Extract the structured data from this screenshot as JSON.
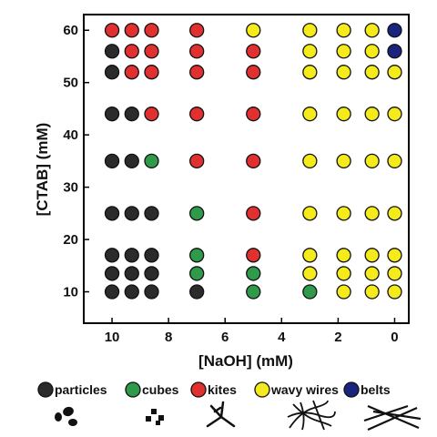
{
  "chart_data": {
    "type": "scatter",
    "xlabel": "[NaOH] (mM)",
    "ylabel": "[CTAB] (mM)",
    "x_axis": {
      "range": [
        11.0,
        -0.5
      ],
      "reversed": true,
      "ticks": [
        10,
        8,
        6,
        4,
        2,
        0
      ]
    },
    "y_axis": {
      "range": [
        4,
        63
      ],
      "ticks": [
        10,
        20,
        30,
        40,
        50,
        60
      ]
    },
    "grid": false,
    "legend_position": "below-plot",
    "categories": [
      {
        "id": "particles",
        "label": "particles",
        "color": "#2b2b2b"
      },
      {
        "id": "cubes",
        "label": "cubes",
        "color": "#2e9a4a"
      },
      {
        "id": "kites",
        "label": "kites",
        "color": "#e0302f"
      },
      {
        "id": "wavy_wires",
        "label": "wavy wires",
        "color": "#f5ea1a"
      },
      {
        "id": "belts",
        "label": "belts",
        "color": "#1a237e"
      }
    ],
    "points": [
      {
        "x": 10,
        "y": 60,
        "cat": "kites"
      },
      {
        "x": 9.3,
        "y": 60,
        "cat": "kites"
      },
      {
        "x": 8.6,
        "y": 60,
        "cat": "kites"
      },
      {
        "x": 7,
        "y": 60,
        "cat": "kites"
      },
      {
        "x": 5,
        "y": 60,
        "cat": "wavy_wires"
      },
      {
        "x": 3,
        "y": 60,
        "cat": "wavy_wires"
      },
      {
        "x": 1.8,
        "y": 60,
        "cat": "wavy_wires"
      },
      {
        "x": 0.8,
        "y": 60,
        "cat": "wavy_wires"
      },
      {
        "x": 0,
        "y": 60,
        "cat": "belts"
      },
      {
        "x": 10,
        "y": 56,
        "cat": "particles"
      },
      {
        "x": 9.3,
        "y": 56,
        "cat": "kites"
      },
      {
        "x": 8.6,
        "y": 56,
        "cat": "kites"
      },
      {
        "x": 7,
        "y": 56,
        "cat": "kites"
      },
      {
        "x": 5,
        "y": 56,
        "cat": "kites"
      },
      {
        "x": 3,
        "y": 56,
        "cat": "wavy_wires"
      },
      {
        "x": 1.8,
        "y": 56,
        "cat": "wavy_wires"
      },
      {
        "x": 0.8,
        "y": 56,
        "cat": "wavy_wires"
      },
      {
        "x": 0,
        "y": 56,
        "cat": "belts"
      },
      {
        "x": 10,
        "y": 52,
        "cat": "particles"
      },
      {
        "x": 9.3,
        "y": 52,
        "cat": "kites"
      },
      {
        "x": 8.6,
        "y": 52,
        "cat": "kites"
      },
      {
        "x": 7,
        "y": 52,
        "cat": "kites"
      },
      {
        "x": 5,
        "y": 52,
        "cat": "kites"
      },
      {
        "x": 3,
        "y": 52,
        "cat": "wavy_wires"
      },
      {
        "x": 1.8,
        "y": 52,
        "cat": "wavy_wires"
      },
      {
        "x": 0.8,
        "y": 52,
        "cat": "wavy_wires"
      },
      {
        "x": 0,
        "y": 52,
        "cat": "wavy_wires"
      },
      {
        "x": 10,
        "y": 44,
        "cat": "particles"
      },
      {
        "x": 9.3,
        "y": 44,
        "cat": "particles"
      },
      {
        "x": 8.6,
        "y": 44,
        "cat": "kites"
      },
      {
        "x": 7,
        "y": 44,
        "cat": "kites"
      },
      {
        "x": 5,
        "y": 44,
        "cat": "kites"
      },
      {
        "x": 3,
        "y": 44,
        "cat": "wavy_wires"
      },
      {
        "x": 1.8,
        "y": 44,
        "cat": "wavy_wires"
      },
      {
        "x": 0.8,
        "y": 44,
        "cat": "wavy_wires"
      },
      {
        "x": 0,
        "y": 44,
        "cat": "wavy_wires"
      },
      {
        "x": 10,
        "y": 35,
        "cat": "particles"
      },
      {
        "x": 9.3,
        "y": 35,
        "cat": "particles"
      },
      {
        "x": 8.6,
        "y": 35,
        "cat": "cubes"
      },
      {
        "x": 7,
        "y": 35,
        "cat": "kites"
      },
      {
        "x": 5,
        "y": 35,
        "cat": "kites"
      },
      {
        "x": 3,
        "y": 35,
        "cat": "wavy_wires"
      },
      {
        "x": 1.8,
        "y": 35,
        "cat": "wavy_wires"
      },
      {
        "x": 0.8,
        "y": 35,
        "cat": "wavy_wires"
      },
      {
        "x": 0,
        "y": 35,
        "cat": "wavy_wires"
      },
      {
        "x": 10,
        "y": 25,
        "cat": "particles"
      },
      {
        "x": 9.3,
        "y": 25,
        "cat": "particles"
      },
      {
        "x": 8.6,
        "y": 25,
        "cat": "particles"
      },
      {
        "x": 7,
        "y": 25,
        "cat": "cubes"
      },
      {
        "x": 5,
        "y": 25,
        "cat": "kites"
      },
      {
        "x": 3,
        "y": 25,
        "cat": "wavy_wires"
      },
      {
        "x": 1.8,
        "y": 25,
        "cat": "wavy_wires"
      },
      {
        "x": 0.8,
        "y": 25,
        "cat": "wavy_wires"
      },
      {
        "x": 0,
        "y": 25,
        "cat": "wavy_wires"
      },
      {
        "x": 10,
        "y": 17,
        "cat": "particles"
      },
      {
        "x": 9.3,
        "y": 17,
        "cat": "particles"
      },
      {
        "x": 8.6,
        "y": 17,
        "cat": "particles"
      },
      {
        "x": 7,
        "y": 17,
        "cat": "cubes"
      },
      {
        "x": 5,
        "y": 17,
        "cat": "kites"
      },
      {
        "x": 3,
        "y": 17,
        "cat": "wavy_wires"
      },
      {
        "x": 1.8,
        "y": 17,
        "cat": "wavy_wires"
      },
      {
        "x": 0.8,
        "y": 17,
        "cat": "wavy_wires"
      },
      {
        "x": 0,
        "y": 17,
        "cat": "wavy_wires"
      },
      {
        "x": 10,
        "y": 13.5,
        "cat": "particles"
      },
      {
        "x": 9.3,
        "y": 13.5,
        "cat": "particles"
      },
      {
        "x": 8.6,
        "y": 13.5,
        "cat": "particles"
      },
      {
        "x": 7,
        "y": 13.5,
        "cat": "cubes"
      },
      {
        "x": 5,
        "y": 13.5,
        "cat": "cubes"
      },
      {
        "x": 3,
        "y": 13.5,
        "cat": "wavy_wires"
      },
      {
        "x": 1.8,
        "y": 13.5,
        "cat": "wavy_wires"
      },
      {
        "x": 0.8,
        "y": 13.5,
        "cat": "wavy_wires"
      },
      {
        "x": 0,
        "y": 13.5,
        "cat": "wavy_wires"
      },
      {
        "x": 10,
        "y": 10,
        "cat": "particles"
      },
      {
        "x": 9.3,
        "y": 10,
        "cat": "particles"
      },
      {
        "x": 8.6,
        "y": 10,
        "cat": "particles"
      },
      {
        "x": 7,
        "y": 10,
        "cat": "particles"
      },
      {
        "x": 5,
        "y": 10,
        "cat": "cubes"
      },
      {
        "x": 3,
        "y": 10,
        "cat": "cubes"
      },
      {
        "x": 1.8,
        "y": 10,
        "cat": "wavy_wires"
      },
      {
        "x": 0.8,
        "y": 10,
        "cat": "wavy_wires"
      },
      {
        "x": 0,
        "y": 10,
        "cat": "wavy_wires"
      }
    ]
  }
}
